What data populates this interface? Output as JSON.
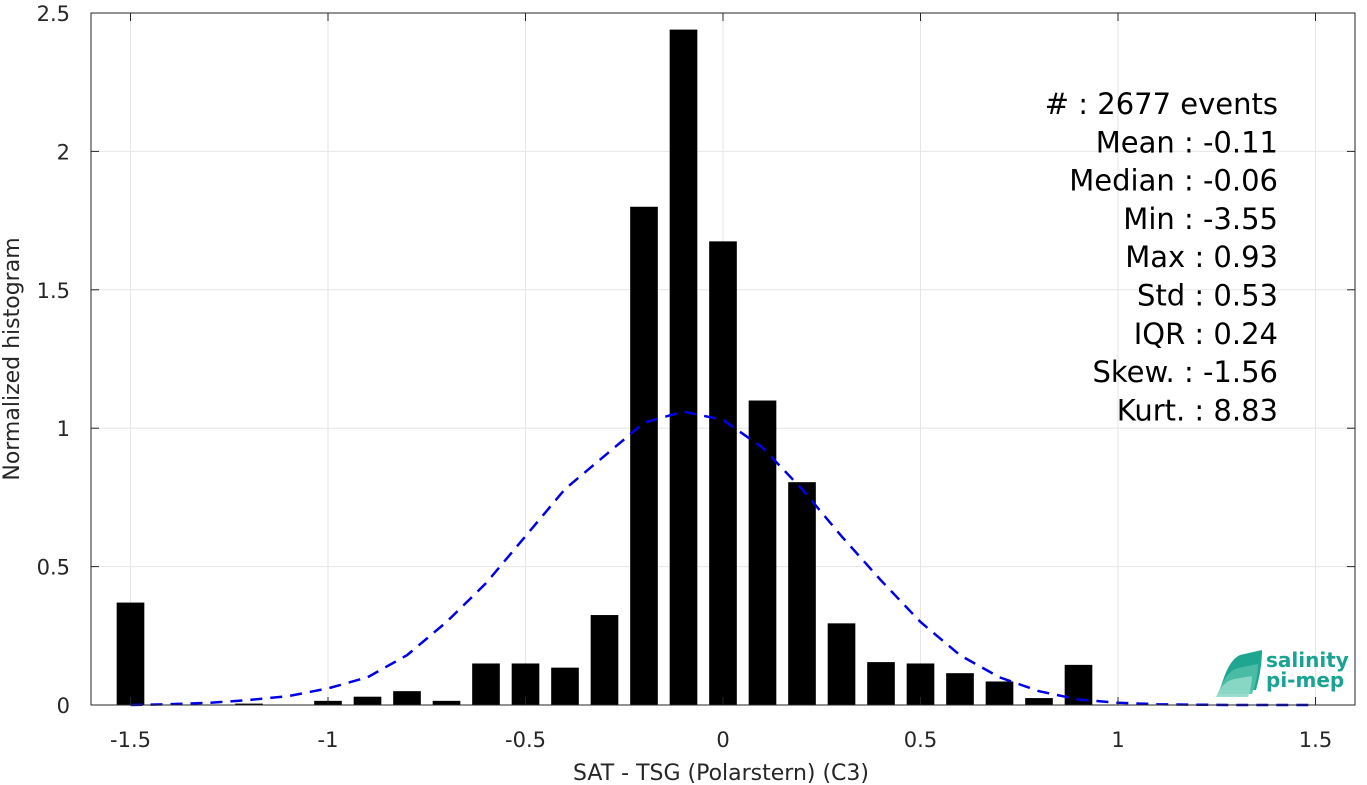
{
  "chart_data": {
    "type": "bar",
    "xlabel": "SAT - TSG (Polarstern) (C3)",
    "ylabel": "Normalized histogram",
    "xlim": [
      -1.6,
      1.6
    ],
    "ylim": [
      0,
      2.5
    ],
    "xticks": [
      -1.5,
      -1,
      -0.5,
      0,
      0.5,
      1,
      1.5
    ],
    "xtick_labels": [
      "-1.5",
      "-1",
      "-0.5",
      "0",
      "0.5",
      "1",
      "1.5"
    ],
    "yticks": [
      0,
      0.5,
      1,
      1.5,
      2,
      2.5
    ],
    "ytick_labels": [
      "0",
      "0.5",
      "1",
      "1.5",
      "2",
      "2.5"
    ],
    "grid": true,
    "bar_color": "#000000",
    "bar_width": 0.07,
    "bars": {
      "x": [
        -1.5,
        -1.4,
        -1.3,
        -1.2,
        -1.1,
        -1.0,
        -0.9,
        -0.8,
        -0.7,
        -0.6,
        -0.5,
        -0.4,
        -0.3,
        -0.2,
        -0.1,
        0.0,
        0.1,
        0.2,
        0.3,
        0.4,
        0.5,
        0.6,
        0.7,
        0.8,
        0.9
      ],
      "y": [
        0.37,
        0.0,
        0.0,
        0.005,
        0.0,
        0.015,
        0.03,
        0.05,
        0.015,
        0.15,
        0.15,
        0.135,
        0.325,
        1.8,
        2.44,
        1.675,
        1.1,
        0.805,
        0.295,
        0.155,
        0.15,
        0.115,
        0.085,
        0.025,
        0.145
      ]
    },
    "fit_curve": {
      "type": "gaussian",
      "style": "dashed",
      "color": "#0000e6",
      "x": [
        -1.5,
        -1.4,
        -1.3,
        -1.2,
        -1.1,
        -1.0,
        -0.9,
        -0.8,
        -0.7,
        -0.6,
        -0.5,
        -0.4,
        -0.3,
        -0.2,
        -0.1,
        0.0,
        0.1,
        0.2,
        0.3,
        0.4,
        0.5,
        0.6,
        0.7,
        0.8,
        0.9,
        1.0,
        1.1,
        1.2,
        1.3,
        1.4,
        1.5
      ],
      "y": [
        0.0,
        0.003,
        0.008,
        0.018,
        0.032,
        0.06,
        0.1,
        0.18,
        0.3,
        0.44,
        0.61,
        0.78,
        0.9,
        1.02,
        1.06,
        1.03,
        0.93,
        0.78,
        0.61,
        0.45,
        0.3,
        0.18,
        0.1,
        0.05,
        0.02,
        0.008,
        0.003,
        0.001,
        0.0,
        0.0,
        0.0
      ]
    },
    "stats": [
      "#  : 2677 events",
      "Mean : -0.11",
      "Median : -0.06",
      "Min : -3.55",
      "Max : 0.93",
      "Std : 0.53",
      "IQR : 0.24",
      "Skew. : -1.56",
      "Kurt. : 8.83"
    ]
  },
  "logo": {
    "line1": "salinity",
    "line2": "pi-mep",
    "color": "#1aa393"
  }
}
